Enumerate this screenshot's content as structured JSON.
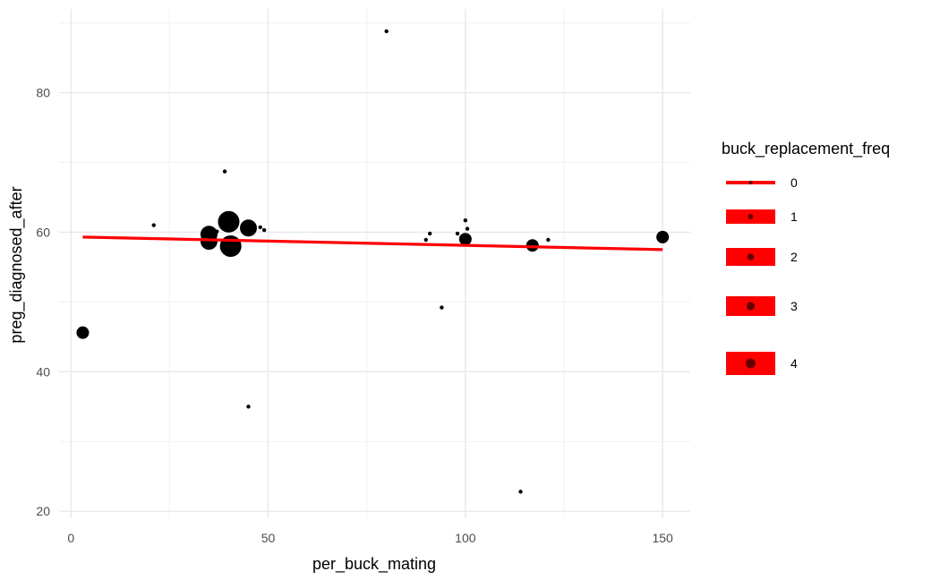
{
  "chart_data": {
    "type": "scatter",
    "xlabel": "per_buck_mating",
    "ylabel": "preg_diagnosed_after",
    "xlim": [
      -3,
      157
    ],
    "ylim": [
      19,
      92
    ],
    "x_ticks": [
      0,
      50,
      100,
      150
    ],
    "y_ticks": [
      20,
      40,
      60,
      80
    ],
    "x_tick_labels": [
      "0",
      "50",
      "100",
      "150"
    ],
    "y_tick_labels": [
      "20",
      "40",
      "60",
      "80"
    ],
    "grid": true,
    "legend": {
      "title": "buck_replacement_freq",
      "position": "right",
      "entries": [
        "0",
        "1",
        "2",
        "3",
        "4"
      ]
    },
    "point_color": "#000000",
    "line_color": "#ff0000",
    "points": [
      {
        "x": 3,
        "y": 45.6,
        "size": 2
      },
      {
        "x": 21,
        "y": 61.0,
        "size": 0
      },
      {
        "x": 35,
        "y": 58.7,
        "size": 3
      },
      {
        "x": 35,
        "y": 59.7,
        "size": 3
      },
      {
        "x": 37,
        "y": 60.1,
        "size": 0
      },
      {
        "x": 39,
        "y": 68.7,
        "size": 0
      },
      {
        "x": 39.5,
        "y": 60.3,
        "size": 0
      },
      {
        "x": 40,
        "y": 61.5,
        "size": 4
      },
      {
        "x": 40.5,
        "y": 58.0,
        "size": 4
      },
      {
        "x": 45,
        "y": 35.0,
        "size": 0
      },
      {
        "x": 45,
        "y": 60.6,
        "size": 3
      },
      {
        "x": 48,
        "y": 60.7,
        "size": 0
      },
      {
        "x": 49,
        "y": 60.3,
        "size": 0
      },
      {
        "x": 80,
        "y": 88.8,
        "size": 0
      },
      {
        "x": 90,
        "y": 58.9,
        "size": 0
      },
      {
        "x": 91,
        "y": 59.8,
        "size": 0
      },
      {
        "x": 94,
        "y": 49.2,
        "size": 0
      },
      {
        "x": 98,
        "y": 59.8,
        "size": 0
      },
      {
        "x": 99,
        "y": 59.3,
        "size": 0
      },
      {
        "x": 100,
        "y": 59.0,
        "size": 2
      },
      {
        "x": 100,
        "y": 61.7,
        "size": 0
      },
      {
        "x": 100.5,
        "y": 60.5,
        "size": 0
      },
      {
        "x": 114,
        "y": 22.8,
        "size": 0
      },
      {
        "x": 117,
        "y": 58.1,
        "size": 2
      },
      {
        "x": 121,
        "y": 58.9,
        "size": 0
      },
      {
        "x": 150,
        "y": 59.3,
        "size": 2
      }
    ],
    "trend_line": {
      "x": [
        3,
        150
      ],
      "y": [
        59.3,
        57.5
      ]
    }
  }
}
